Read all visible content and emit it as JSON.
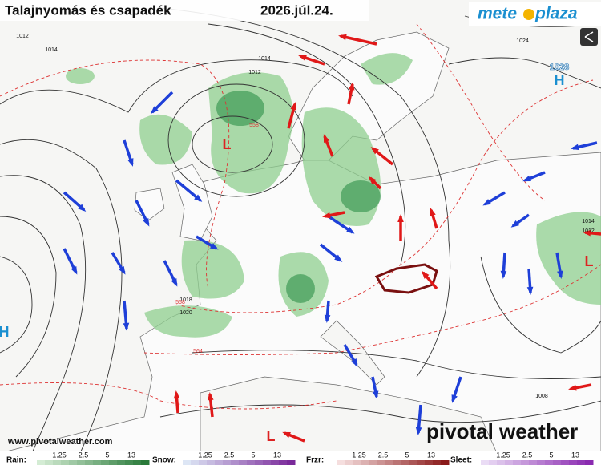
{
  "header": {
    "title": "Talajnyomás és csapadék",
    "date": "2026.júl.24.",
    "logo_left": "mete",
    "logo_right": "plaza"
  },
  "watermark": {
    "brand": "pivotal weather",
    "url": "www.pivotalweather.com"
  },
  "legend": [
    {
      "label": "Rain:",
      "ticks": [
        "1.25",
        "2.5",
        "5",
        "13"
      ]
    },
    {
      "label": "Snow:",
      "ticks": [
        "1.25",
        "2.5",
        "5",
        "13"
      ]
    },
    {
      "label": "Frzr:",
      "ticks": [
        "1.25",
        "2.5",
        "5",
        "13"
      ]
    },
    {
      "label": "Sleet:",
      "ticks": [
        "1.25",
        "2.5",
        "5",
        "13"
      ]
    }
  ],
  "map_labels": {
    "isobars": [
      "1012",
      "1014",
      "1014",
      "1012",
      "1024",
      "1018",
      "1020",
      "1008",
      "1014",
      "1012"
    ],
    "thickness": [
      "558",
      "558",
      "564"
    ],
    "highs_lows": [
      "1028",
      "H",
      "L",
      "L",
      "H",
      "L"
    ]
  }
}
